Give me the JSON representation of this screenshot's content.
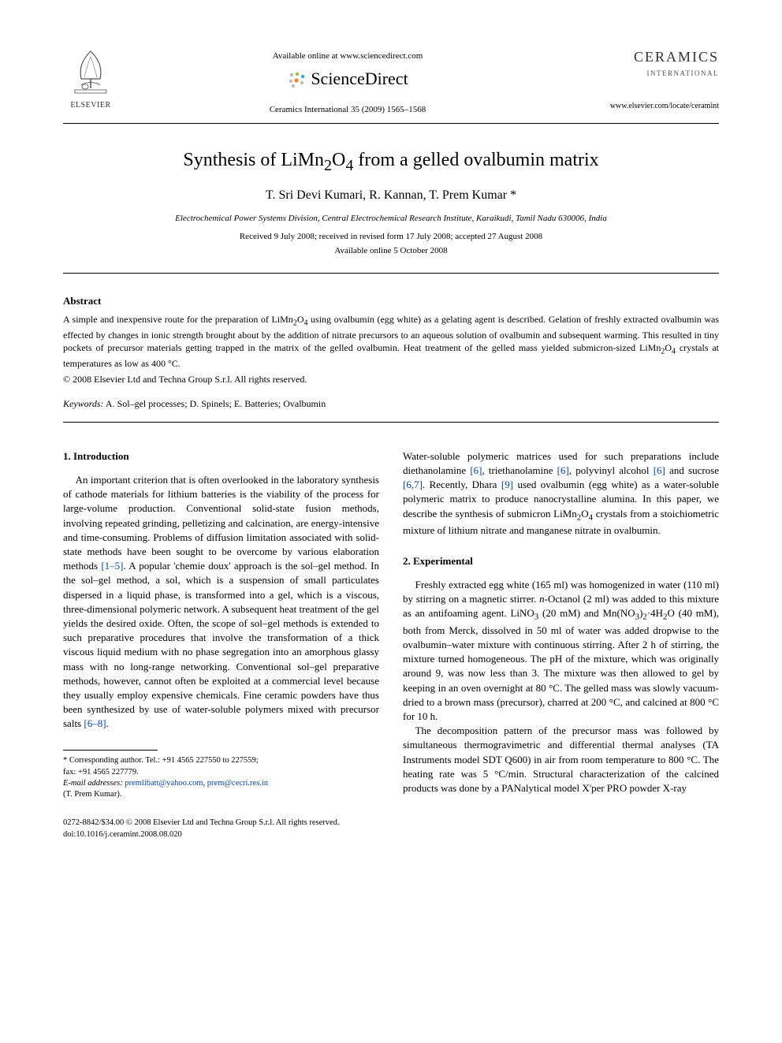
{
  "header": {
    "available_online": "Available online at www.sciencedirect.com",
    "sd_brand": "ScienceDirect",
    "citation": "Ceramics International 35 (2009) 1565–1568",
    "elsevier_label": "ELSEVIER",
    "journal_title": "CERAMICS",
    "journal_subtitle": "INTERNATIONAL",
    "journal_url": "www.elsevier.com/locate/ceramint"
  },
  "article": {
    "title_html": "Synthesis of LiMn<sub>2</sub>O<sub>4</sub> from a gelled ovalbumin matrix",
    "authors_html": "T. Sri Devi Kumari, R. Kannan, T. Prem Kumar *",
    "affiliation": "Electrochemical Power Systems Division, Central Electrochemical Research Institute, Karaikudi, Tamil Nadu 630006, India",
    "received": "Received 9 July 2008; received in revised form 17 July 2008; accepted 27 August 2008",
    "available": "Available online 5 October 2008"
  },
  "abstract": {
    "heading": "Abstract",
    "text_html": "A simple and inexpensive route for the preparation of LiMn<sub>2</sub>O<sub>4</sub> using ovalbumin (egg white) as a gelating agent is described. Gelation of freshly extracted ovalbumin was effected by changes in ionic strength brought about by the addition of nitrate precursors to an aqueous solution of ovalbumin and subsequent warming. This resulted in tiny pockets of precursor materials getting trapped in the matrix of the gelled ovalbumin. Heat treatment of the gelled mass yielded submicron-sized LiMn<sub>2</sub>O<sub>4</sub> crystals at temperatures as low as 400 °C.",
    "copyright": "© 2008 Elsevier Ltd and Techna Group S.r.l. All rights reserved."
  },
  "keywords": {
    "label": "Keywords:",
    "text": " A. Sol–gel processes; D. Spinels; E. Batteries; Ovalbumin"
  },
  "sections": {
    "intro_heading": "1.  Introduction",
    "intro_p1_html": "An important criterion that is often overlooked in the laboratory synthesis of cathode materials for lithium batteries is the viability of the process for large-volume production. Conventional solid-state fusion methods, involving repeated grinding, pelletizing and calcination, are energy-intensive and time-consuming. Problems of diffusion limitation associated with solid-state methods have been sought to be overcome by various elaboration methods <span class=\"ref-link\">[1–5]</span>. A popular 'chemie doux' approach is the sol–gel method. In the sol–gel method, a sol, which is a suspension of small particulates dispersed in a liquid phase, is transformed into a gel, which is a viscous, three-dimensional polymeric network. A subsequent heat treatment of the gel yields the desired oxide. Often, the scope of sol–gel methods is extended to such preparative procedures that involve the transformation of a thick viscous liquid medium with no phase segregation into an amorphous glassy mass with no long-range networking. Conventional sol–gel preparative methods, however, cannot often be exploited at a commercial level because they usually employ expensive chemicals. Fine ceramic powders have thus been synthesized by use of water-soluble polymers mixed with precursor salts <span class=\"ref-link\">[6–8]</span>.",
    "col2_top_html": "Water-soluble polymeric matrices used for such preparations include diethanolamine <span class=\"ref-link\">[6]</span>, triethanolamine <span class=\"ref-link\">[6]</span>, polyvinyl alcohol <span class=\"ref-link\">[6]</span> and sucrose <span class=\"ref-link\">[6,7]</span>. Recently, Dhara <span class=\"ref-link\">[9]</span> used ovalbumin (egg white) as a water-soluble polymeric matrix to produce nanocrystalline alumina. In this paper, we describe the synthesis of submicron LiMn<sub>2</sub>O<sub>4</sub> crystals from a stoichiometric mixture of lithium nitrate and manganese nitrate in ovalbumin.",
    "exp_heading": "2.  Experimental",
    "exp_p1_html": "Freshly extracted egg white (165 ml) was homogenized in water (110 ml) by stirring on a magnetic stirrer. <i>n</i>-Octanol (2 ml) was added to this mixture as an antifoaming agent. LiNO<sub>3</sub> (20 mM) and Mn(NO<sub>3</sub>)<sub>2</sub>·4H<sub>2</sub>O (40 mM), both from Merck, dissolved in 50 ml of water was added dropwise to the ovalbumin–water mixture with continuous stirring. After 2 h of stirring, the mixture turned homogeneous. The pH of the mixture, which was originally around 9, was now less than 3. The mixture was then allowed to gel by keeping in an oven overnight at 80 °C. The gelled mass was slowly vacuum-dried to a brown mass (precursor), charred at 200 °C, and calcined at 800 °C for 10 h.",
    "exp_p2_html": "The decomposition pattern of the precursor mass was followed by simultaneous thermogravimetric and differential thermal analyses (TA Instruments model SDT Q600) in air from room temperature to 800 °C. The heating rate was 5 °C/min. Structural characterization of the calcined products was done by a PANalytical model X'per PRO powder X-ray"
  },
  "footnote": {
    "corresponding": "* Corresponding author. Tel.: +91 4565 227550 to 227559;",
    "fax": "fax: +91 4565 227779.",
    "email_label": "E-mail addresses:",
    "email1": "premlibatt@yahoo.com",
    "email2": "prem@cecri.res.in",
    "author_paren": "(T. Prem Kumar)."
  },
  "footer": {
    "issn": "0272-8842/$34.00 © 2008 Elsevier Ltd and Techna Group S.r.l. All rights reserved.",
    "doi": "doi:10.1016/j.ceramint.2008.08.020"
  },
  "colors": {
    "link": "#0645ad",
    "text": "#000000",
    "sd_orange": "#f58220",
    "sd_green": "#8cc63f",
    "sd_blue": "#29abe2"
  }
}
